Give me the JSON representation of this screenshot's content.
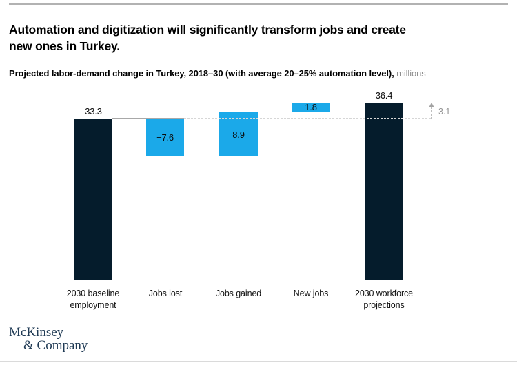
{
  "header": {
    "title_lines": [
      "Automation and digitization will significantly transform jobs and create",
      "new ones in Turkey."
    ],
    "subtitle_main": "Projected labor-demand change in Turkey, 2018–30 (with average 20–25% automation level),",
    "subtitle_unit": "millions"
  },
  "chart_data": {
    "type": "waterfall",
    "title": "Projected labor-demand change in Turkey, 2018–30 (with average 20–25% automation level)",
    "unit": "millions",
    "categories": [
      "2030 baseline employment",
      "Jobs lost",
      "Jobs gained",
      "New jobs",
      "2030 workforce projections"
    ],
    "values": [
      33.3,
      -7.6,
      8.9,
      1.8,
      36.4
    ],
    "bar_labels": [
      "33.3",
      "−7.6",
      "8.9",
      "1.8",
      "36.4"
    ],
    "bar_roles": [
      "total",
      "decrease",
      "increase",
      "increase",
      "total"
    ],
    "net_change": 3.1,
    "net_change_label": "3.1",
    "ylim": [
      0,
      40
    ],
    "grid": false,
    "legend": "none",
    "colors": {
      "total_bar": "#051c2c",
      "change_bar": "#1ba9e9",
      "connector": "#a8a8a8",
      "dashed_reference": "#d6d6d6",
      "annotation_text": "#959595"
    }
  },
  "footer": {
    "logo_line1": "McKinsey",
    "logo_line2": "& Company"
  }
}
